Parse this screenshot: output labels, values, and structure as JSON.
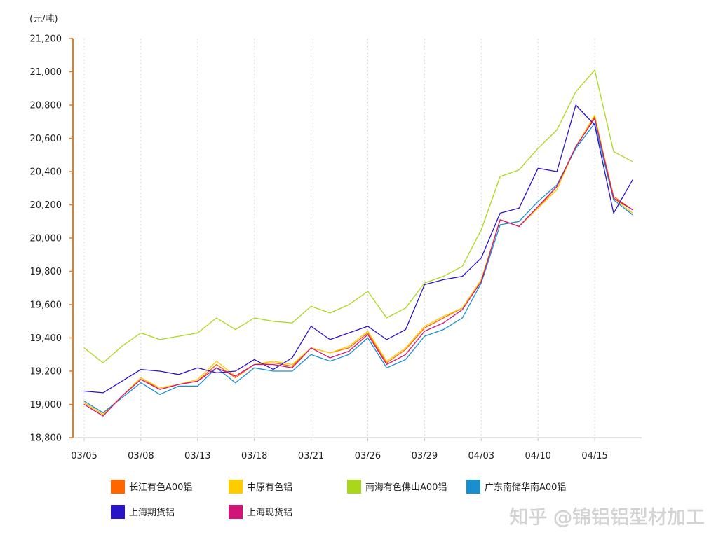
{
  "chart_data": {
    "type": "line",
    "ylabel": "(元/吨)",
    "ylim": [
      18800,
      21200
    ],
    "yticks": [
      "18,800",
      "19,000",
      "19,200",
      "19,400",
      "19,600",
      "19,800",
      "20,000",
      "20,200",
      "20,400",
      "20,600",
      "20,800",
      "21,000",
      "21,200"
    ],
    "categories": [
      "03/05",
      "",
      "",
      "03/08",
      "",
      "",
      "03/13",
      "",
      "",
      "03/18",
      "",
      "",
      "03/21",
      "",
      "",
      "03/26",
      "",
      "",
      "03/29",
      "",
      "",
      "04/03",
      "",
      "",
      "04/10",
      "",
      "",
      "04/15",
      "",
      ""
    ],
    "grid": {
      "x": true,
      "y": false
    },
    "legend_position": "bottom",
    "series": [
      {
        "name": "长江有色A00铝",
        "color": "#FF6600",
        "values": [
          19010,
          18940,
          19050,
          19160,
          19090,
          19120,
          19140,
          19240,
          19160,
          19240,
          19250,
          19230,
          19340,
          19310,
          19340,
          19430,
          19250,
          19330,
          19460,
          19520,
          19580,
          19750,
          20110,
          20070,
          20180,
          20310,
          20550,
          20730,
          20250,
          20170
        ]
      },
      {
        "name": "中原有色铝",
        "color": "#FFCC00",
        "values": [
          19010,
          18940,
          19050,
          19160,
          19100,
          19120,
          19150,
          19260,
          19170,
          19240,
          19260,
          19240,
          19340,
          19310,
          19350,
          19440,
          19260,
          19340,
          19470,
          19530,
          19580,
          19750,
          20110,
          20070,
          20180,
          20290,
          20550,
          20740,
          20240,
          20150
        ]
      },
      {
        "name": "南海有色佛山A00铝",
        "color": "#A9D81A",
        "values": [
          19340,
          19250,
          19350,
          19430,
          19390,
          19410,
          19430,
          19520,
          19450,
          19520,
          19500,
          19490,
          19590,
          19550,
          19600,
          19680,
          19520,
          19580,
          19730,
          19770,
          19830,
          20050,
          20370,
          20410,
          20540,
          20650,
          20880,
          21010,
          20520,
          20460
        ]
      },
      {
        "name": "广东南储华南A00铝",
        "color": "#1A8FD0",
        "values": [
          19020,
          18950,
          19040,
          19130,
          19060,
          19110,
          19110,
          19220,
          19130,
          19220,
          19200,
          19200,
          19300,
          19260,
          19300,
          19400,
          19220,
          19270,
          19410,
          19450,
          19520,
          19730,
          20080,
          20100,
          20220,
          20320,
          20540,
          20690,
          20230,
          20140
        ]
      },
      {
        "name": "上海期货铝",
        "color": "#2A14C8",
        "values": [
          19080,
          19070,
          19140,
          19210,
          19200,
          19180,
          19220,
          19190,
          19200,
          19270,
          19210,
          19280,
          19470,
          19390,
          19430,
          19470,
          19390,
          19450,
          19720,
          19750,
          19770,
          19880,
          20150,
          20180,
          20420,
          20400,
          20800,
          20680,
          20150,
          20350
        ]
      },
      {
        "name": "上海现货铝",
        "color": "#D0147A",
        "values": [
          19000,
          18930,
          19050,
          19150,
          19090,
          19120,
          19140,
          19220,
          19170,
          19240,
          19240,
          19220,
          19340,
          19280,
          19320,
          19420,
          19240,
          19300,
          19440,
          19490,
          19570,
          19740,
          20110,
          20070,
          20190,
          20310,
          20550,
          20720,
          20240,
          20170
        ]
      }
    ]
  },
  "watermark": {
    "text": "知乎 @锦铝铝型材加工"
  }
}
